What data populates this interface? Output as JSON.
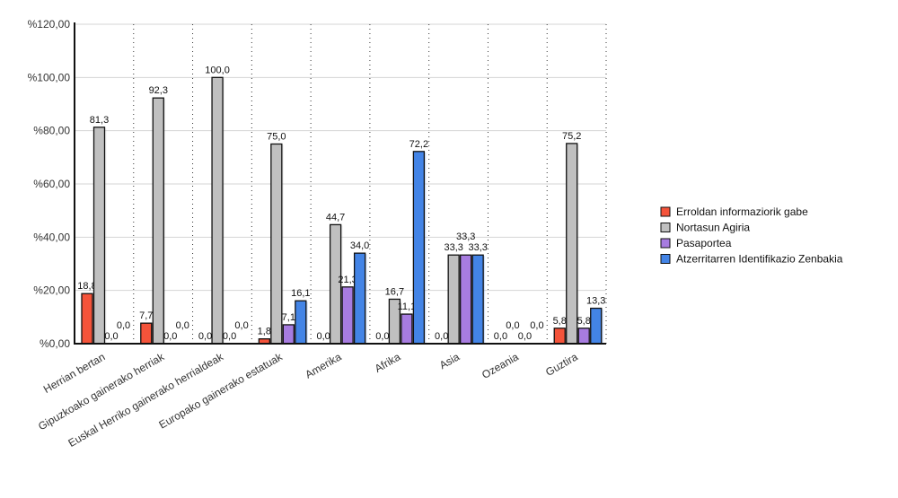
{
  "chart_data": {
    "type": "bar",
    "title": "",
    "xlabel": "",
    "ylabel": "",
    "ylim": [
      0,
      120
    ],
    "yticks": [
      0,
      20,
      40,
      60,
      80,
      100,
      120
    ],
    "ytick_labels": [
      "%0,00",
      "%20,00",
      "%40,00",
      "%60,00",
      "%80,00",
      "%100,00",
      "%120,00"
    ],
    "grid": true,
    "legend_placement": "right",
    "categories": [
      "Herrian bertan",
      "Gipuzkoako gainerako herriak",
      "Euskal Herriko gainerako herrialdeak",
      "Europako gainerako estatuak",
      "Amerika",
      "Afrika",
      "Asia",
      "Ozeania",
      "Guztira"
    ],
    "series": [
      {
        "name": "Erroldan informaziorik gabe",
        "color": "#f4533a",
        "values": [
          18.8,
          7.7,
          0.0,
          1.8,
          0.0,
          0.0,
          0.0,
          0.0,
          5.8
        ],
        "labels": [
          "18,8",
          "7,7",
          "0,0",
          "1,8",
          "0,0",
          "0,0",
          "0,0",
          "0,0",
          "5,8"
        ]
      },
      {
        "name": "Nortasun Agiria",
        "color": "#c0c0c0",
        "values": [
          81.3,
          92.3,
          100.0,
          75.0,
          44.7,
          16.7,
          33.3,
          0.0,
          75.2
        ],
        "labels": [
          "81,3",
          "92,3",
          "100,0",
          "75,0",
          "44,7",
          "16,7",
          "33,3",
          "0,0",
          "75,2"
        ]
      },
      {
        "name": "Pasaportea",
        "color": "#a77ce0",
        "values": [
          0.0,
          0.0,
          0.0,
          7.1,
          21.3,
          11.1,
          33.3,
          0.0,
          5.8
        ],
        "labels": [
          "0,0",
          "0,0",
          "0,0",
          "7,1",
          "21,3",
          "11,1",
          "33,3",
          "0,0",
          "5,8"
        ]
      },
      {
        "name": "Atzerritarren Identifikazio Zenbakia",
        "color": "#4384e6",
        "values": [
          0.0,
          0.0,
          0.0,
          16.1,
          34.0,
          72.2,
          33.3,
          0.0,
          13.3
        ],
        "labels": [
          "0,0",
          "0,0",
          "0,0",
          "16,1",
          "34,0",
          "72,2",
          "33,3",
          "0,0",
          "13,3"
        ]
      }
    ]
  }
}
